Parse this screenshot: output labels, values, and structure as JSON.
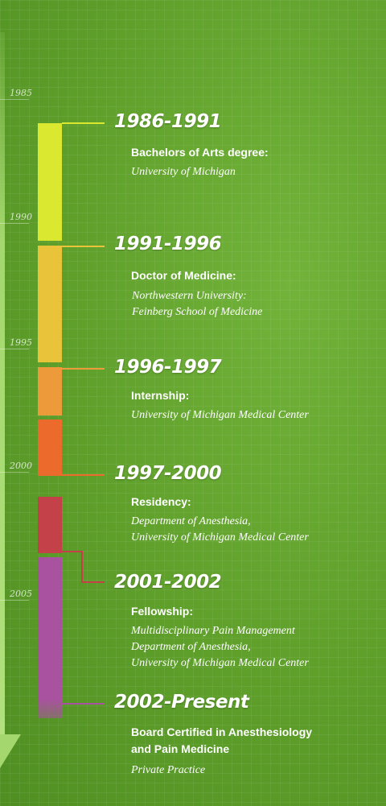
{
  "axis": {
    "years": [
      "1985",
      "1990",
      "1995",
      "2000",
      "2005"
    ]
  },
  "colors": {
    "yellow": "#dbe830",
    "gold": "#e9c33a",
    "orange": "#ec9a3a",
    "red_orange": "#ec6a2b",
    "crimson": "#c4414a",
    "purple": "#a9529f"
  },
  "entries": [
    {
      "title": "1986-1991",
      "heading": "Bachelors of Arts degree:",
      "desc": [
        "University of Michigan"
      ]
    },
    {
      "title": "1991-1996",
      "heading": "Doctor of Medicine:",
      "desc": [
        "Northwestern University:",
        "Feinberg School of Medicine"
      ]
    },
    {
      "title": "1996-1997",
      "heading": "Internship:",
      "desc": [
        "University of Michigan Medical Center"
      ]
    },
    {
      "title": "1997-2000",
      "heading": "Residency:",
      "desc": [
        "Department of Anesthesia,",
        "University of Michigan Medical Center"
      ]
    },
    {
      "title": "2001-2002",
      "heading": "Fellowship:",
      "desc": [
        "Multidisciplinary Pain Management",
        "Department of Anesthesia,",
        "University of Michigan Medical Center"
      ]
    },
    {
      "title": "2002-Present",
      "heading": [
        "Board Certified in Anesthesiology",
        "and Pain Medicine"
      ],
      "desc": [
        "Private Practice"
      ]
    }
  ]
}
